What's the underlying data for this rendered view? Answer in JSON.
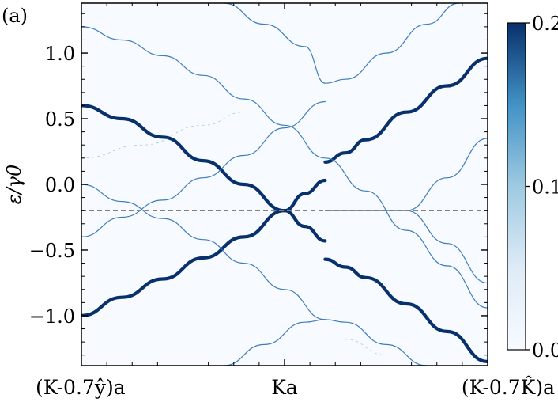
{
  "panel_label": "(a)",
  "chart_data": {
    "type": "heatmap",
    "ylabel": "ε/γ0",
    "ylim": [
      -1.38,
      1.38
    ],
    "xlim": [
      0,
      1
    ],
    "yticks": [
      {
        "value": 1.0,
        "label": "1.0"
      },
      {
        "value": 0.5,
        "label": "0.5"
      },
      {
        "value": 0.0,
        "label": "0.0"
      },
      {
        "value": -0.5,
        "label": "−0.5"
      },
      {
        "value": -1.0,
        "label": "−1.0"
      }
    ],
    "xticklabels": [
      {
        "value": 0.0,
        "label": "(K-0.7ŷ)a"
      },
      {
        "value": 0.5,
        "label": "Ka"
      },
      {
        "value": 1.0,
        "label": "(K-0.7K̂)a"
      }
    ],
    "reference_line": {
      "y": -0.2,
      "style": "dashed",
      "color": "#808080"
    },
    "colorbar": {
      "range": [
        0.0,
        0.2
      ],
      "ticks": [
        {
          "value": 0.2,
          "label": "0.2"
        },
        {
          "value": 0.1,
          "label": "0.1"
        },
        {
          "value": 0.0,
          "label": "0.0"
        }
      ],
      "colormap": "Blues",
      "color_low": "#f7fbff",
      "color_high": "#08306b"
    },
    "bands": [
      {
        "name": "strong-upper-left",
        "weight": "strong",
        "points": [
          [
            0,
            0.6
          ],
          [
            0.1,
            0.5
          ],
          [
            0.2,
            0.36
          ],
          [
            0.3,
            0.18
          ],
          [
            0.4,
            0.0
          ],
          [
            0.5,
            -0.2
          ],
          [
            0.55,
            -0.32
          ],
          [
            0.6,
            -0.43
          ]
        ]
      },
      {
        "name": "strong-lower-left",
        "weight": "strong",
        "points": [
          [
            0,
            -1.0
          ],
          [
            0.1,
            -0.86
          ],
          [
            0.2,
            -0.72
          ],
          [
            0.3,
            -0.56
          ],
          [
            0.4,
            -0.4
          ],
          [
            0.5,
            -0.2
          ],
          [
            0.55,
            -0.07
          ],
          [
            0.6,
            0.03
          ]
        ]
      },
      {
        "name": "strong-gap-top",
        "weight": "strong",
        "points": [
          [
            0.6,
            0.17
          ],
          [
            0.65,
            0.24
          ],
          [
            0.7,
            0.34
          ],
          [
            0.8,
            0.55
          ],
          [
            0.9,
            0.75
          ],
          [
            1.0,
            0.96
          ]
        ]
      },
      {
        "name": "strong-gap-bottom",
        "weight": "strong",
        "points": [
          [
            0.6,
            -0.57
          ],
          [
            0.65,
            -0.63
          ],
          [
            0.7,
            -0.71
          ],
          [
            0.8,
            -0.91
          ],
          [
            0.9,
            -1.12
          ],
          [
            1.0,
            -1.35
          ]
        ]
      },
      {
        "name": "thin-1",
        "weight": "thin",
        "points": [
          [
            0,
            1.2
          ],
          [
            0.1,
            1.1
          ],
          [
            0.2,
            0.98
          ],
          [
            0.3,
            0.83
          ],
          [
            0.4,
            0.65
          ],
          [
            0.5,
            0.45
          ],
          [
            0.6,
            0.2
          ],
          [
            0.7,
            -0.05
          ],
          [
            0.8,
            -0.35
          ],
          [
            0.9,
            -0.62
          ],
          [
            1.0,
            -0.94
          ]
        ]
      },
      {
        "name": "thin-2",
        "weight": "thin",
        "points": [
          [
            0,
            -0.4
          ],
          [
            0.1,
            -0.25
          ],
          [
            0.2,
            -0.12
          ],
          [
            0.3,
            0.05
          ],
          [
            0.4,
            0.22
          ],
          [
            0.5,
            0.43
          ],
          [
            0.6,
            0.63
          ]
        ]
      },
      {
        "name": "thin-3",
        "weight": "thin",
        "points": [
          [
            0,
            0.0
          ],
          [
            0.1,
            -0.13
          ],
          [
            0.2,
            -0.26
          ],
          [
            0.3,
            -0.42
          ],
          [
            0.4,
            -0.6
          ],
          [
            0.5,
            -0.8
          ],
          [
            0.6,
            -1.03
          ]
        ]
      },
      {
        "name": "thin-4",
        "weight": "thin",
        "points": [
          [
            0.6,
            -0.2
          ],
          [
            0.7,
            -0.2
          ],
          [
            0.8,
            -0.2
          ],
          [
            0.9,
            0.05
          ],
          [
            1.0,
            0.35
          ]
        ]
      },
      {
        "name": "thin-5",
        "weight": "thin",
        "points": [
          [
            0.8,
            -0.2
          ],
          [
            0.9,
            -0.45
          ],
          [
            1.0,
            -0.75
          ]
        ]
      },
      {
        "name": "thin-6",
        "weight": "thin",
        "points": [
          [
            0.35,
            -1.38
          ],
          [
            0.45,
            -1.22
          ],
          [
            0.55,
            -1.05
          ],
          [
            0.6,
            -1.03
          ],
          [
            0.65,
            -1.05
          ],
          [
            0.75,
            -1.22
          ],
          [
            0.85,
            -1.38
          ]
        ]
      },
      {
        "name": "thin-7",
        "weight": "thin",
        "points": [
          [
            0.35,
            1.38
          ],
          [
            0.45,
            1.22
          ],
          [
            0.55,
            1.05
          ],
          [
            0.6,
            0.77
          ],
          [
            0.65,
            0.8
          ],
          [
            0.75,
            1.0
          ],
          [
            0.85,
            1.22
          ],
          [
            0.93,
            1.38
          ]
        ]
      },
      {
        "name": "faint-1",
        "weight": "faint",
        "points": [
          [
            0,
            0.2
          ],
          [
            0.15,
            0.3
          ],
          [
            0.3,
            0.45
          ],
          [
            0.4,
            0.55
          ]
        ]
      },
      {
        "name": "faint-2",
        "weight": "faint",
        "points": [
          [
            0.65,
            -1.18
          ],
          [
            0.75,
            -1.3
          ]
        ]
      }
    ]
  }
}
